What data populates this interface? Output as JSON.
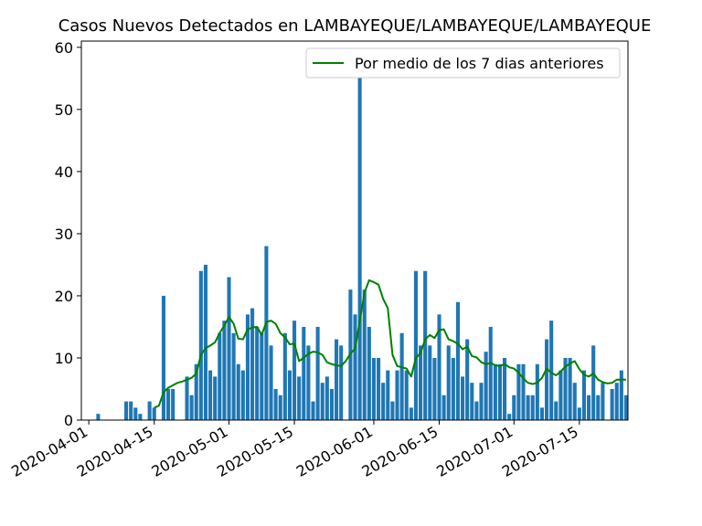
{
  "chart_data": {
    "type": "bar",
    "title": "Casos Nuevos Detectados en LAMBAYEQUE/LAMBAYEQUE/LAMBAYEQUE",
    "xlabel": "",
    "ylabel": "",
    "x_start": "2020-03-31",
    "x_end": "2020-07-25",
    "ylim": [
      0,
      61
    ],
    "yticks": [
      0,
      10,
      20,
      30,
      40,
      50,
      60
    ],
    "xtick_labels": [
      "2020-04-01",
      "2020-04-15",
      "2020-05-01",
      "2020-05-15",
      "2020-06-01",
      "2020-06-15",
      "2020-07-01",
      "2020-07-15"
    ],
    "legend_position": "top-right",
    "grid": false,
    "series": [
      {
        "kind": "bar",
        "color": "#1f77b4",
        "points": [
          [
            "2020-04-03",
            1
          ],
          [
            "2020-04-09",
            3
          ],
          [
            "2020-04-10",
            3
          ],
          [
            "2020-04-11",
            2
          ],
          [
            "2020-04-12",
            1
          ],
          [
            "2020-04-14",
            3
          ],
          [
            "2020-04-15",
            2
          ],
          [
            "2020-04-17",
            20
          ],
          [
            "2020-04-18",
            5
          ],
          [
            "2020-04-19",
            5
          ],
          [
            "2020-04-22",
            7
          ],
          [
            "2020-04-23",
            4
          ],
          [
            "2020-04-24",
            9
          ],
          [
            "2020-04-25",
            24
          ],
          [
            "2020-04-26",
            25
          ],
          [
            "2020-04-27",
            8
          ],
          [
            "2020-04-28",
            7
          ],
          [
            "2020-04-29",
            14
          ],
          [
            "2020-04-30",
            16
          ],
          [
            "2020-05-01",
            23
          ],
          [
            "2020-05-02",
            14
          ],
          [
            "2020-05-03",
            9
          ],
          [
            "2020-05-04",
            8
          ],
          [
            "2020-05-05",
            17
          ],
          [
            "2020-05-06",
            18
          ],
          [
            "2020-05-07",
            15
          ],
          [
            "2020-05-08",
            14
          ],
          [
            "2020-05-09",
            28
          ],
          [
            "2020-05-10",
            12
          ],
          [
            "2020-05-11",
            5
          ],
          [
            "2020-05-12",
            4
          ],
          [
            "2020-05-13",
            14
          ],
          [
            "2020-05-14",
            8
          ],
          [
            "2020-05-15",
            16
          ],
          [
            "2020-05-16",
            7
          ],
          [
            "2020-05-17",
            15
          ],
          [
            "2020-05-18",
            12
          ],
          [
            "2020-05-19",
            3
          ],
          [
            "2020-05-20",
            15
          ],
          [
            "2020-05-21",
            6
          ],
          [
            "2020-05-22",
            7
          ],
          [
            "2020-05-23",
            5
          ],
          [
            "2020-05-24",
            13
          ],
          [
            "2020-05-25",
            12
          ],
          [
            "2020-05-27",
            21
          ],
          [
            "2020-05-28",
            17
          ],
          [
            "2020-05-29",
            58
          ],
          [
            "2020-05-30",
            21
          ],
          [
            "2020-05-31",
            15
          ],
          [
            "2020-06-01",
            10
          ],
          [
            "2020-06-02",
            10
          ],
          [
            "2020-06-03",
            6
          ],
          [
            "2020-06-04",
            8
          ],
          [
            "2020-06-05",
            3
          ],
          [
            "2020-06-06",
            8
          ],
          [
            "2020-06-07",
            14
          ],
          [
            "2020-06-08",
            8
          ],
          [
            "2020-06-09",
            2
          ],
          [
            "2020-06-10",
            24
          ],
          [
            "2020-06-11",
            12
          ],
          [
            "2020-06-12",
            24
          ],
          [
            "2020-06-13",
            12
          ],
          [
            "2020-06-14",
            10
          ],
          [
            "2020-06-15",
            17
          ],
          [
            "2020-06-16",
            4
          ],
          [
            "2020-06-17",
            12
          ],
          [
            "2020-06-18",
            10
          ],
          [
            "2020-06-19",
            19
          ],
          [
            "2020-06-20",
            7
          ],
          [
            "2020-06-21",
            13
          ],
          [
            "2020-06-22",
            6
          ],
          [
            "2020-06-23",
            3
          ],
          [
            "2020-06-24",
            6
          ],
          [
            "2020-06-25",
            11
          ],
          [
            "2020-06-26",
            15
          ],
          [
            "2020-06-27",
            9
          ],
          [
            "2020-06-28",
            9
          ],
          [
            "2020-06-29",
            10
          ],
          [
            "2020-06-30",
            1
          ],
          [
            "2020-07-01",
            4
          ],
          [
            "2020-07-02",
            9
          ],
          [
            "2020-07-03",
            9
          ],
          [
            "2020-07-04",
            4
          ],
          [
            "2020-07-05",
            4
          ],
          [
            "2020-07-06",
            9
          ],
          [
            "2020-07-07",
            2
          ],
          [
            "2020-07-08",
            13
          ],
          [
            "2020-07-09",
            16
          ],
          [
            "2020-07-10",
            3
          ],
          [
            "2020-07-11",
            8
          ],
          [
            "2020-07-12",
            10
          ],
          [
            "2020-07-13",
            10
          ],
          [
            "2020-07-14",
            6
          ],
          [
            "2020-07-15",
            2
          ],
          [
            "2020-07-16",
            8
          ],
          [
            "2020-07-17",
            4
          ],
          [
            "2020-07-18",
            12
          ],
          [
            "2020-07-19",
            4
          ],
          [
            "2020-07-20",
            6
          ],
          [
            "2020-07-22",
            5
          ],
          [
            "2020-07-23",
            6
          ],
          [
            "2020-07-24",
            8
          ],
          [
            "2020-07-25",
            4
          ]
        ]
      },
      {
        "kind": "line",
        "name": "Por medio de los 7 dias anteriores",
        "color": "#008000",
        "points": [
          [
            "2020-04-15",
            2.0
          ],
          [
            "2020-04-16",
            2.3
          ],
          [
            "2020-04-17",
            4.5
          ],
          [
            "2020-04-18",
            5.2
          ],
          [
            "2020-04-19",
            5.6
          ],
          [
            "2020-04-20",
            6.0
          ],
          [
            "2020-04-21",
            6.2
          ],
          [
            "2020-04-22",
            6.5
          ],
          [
            "2020-04-23",
            6.8
          ],
          [
            "2020-04-24",
            7.5
          ],
          [
            "2020-04-25",
            10.5
          ],
          [
            "2020-04-26",
            11.6
          ],
          [
            "2020-04-27",
            12.0
          ],
          [
            "2020-04-28",
            12.5
          ],
          [
            "2020-04-29",
            14.0
          ],
          [
            "2020-04-30",
            15.2
          ],
          [
            "2020-05-01",
            16.6
          ],
          [
            "2020-05-02",
            15.5
          ],
          [
            "2020-05-03",
            13.1
          ],
          [
            "2020-05-04",
            13.0
          ],
          [
            "2020-05-05",
            14.6
          ],
          [
            "2020-05-06",
            14.9
          ],
          [
            "2020-05-07",
            15.0
          ],
          [
            "2020-05-08",
            13.7
          ],
          [
            "2020-05-09",
            15.8
          ],
          [
            "2020-05-10",
            16.0
          ],
          [
            "2020-05-11",
            15.5
          ],
          [
            "2020-05-12",
            14.0
          ],
          [
            "2020-05-13",
            13.3
          ],
          [
            "2020-05-14",
            12.2
          ],
          [
            "2020-05-15",
            12.3
          ],
          [
            "2020-05-16",
            9.5
          ],
          [
            "2020-05-17",
            10.0
          ],
          [
            "2020-05-18",
            10.7
          ],
          [
            "2020-05-19",
            11.0
          ],
          [
            "2020-05-20",
            10.9
          ],
          [
            "2020-05-21",
            10.5
          ],
          [
            "2020-05-22",
            9.3
          ],
          [
            "2020-05-23",
            9.0
          ],
          [
            "2020-05-24",
            8.8
          ],
          [
            "2020-05-25",
            8.7
          ],
          [
            "2020-05-26",
            9.5
          ],
          [
            "2020-05-27",
            10.7
          ],
          [
            "2020-05-28",
            11.5
          ],
          [
            "2020-05-29",
            16.0
          ],
          [
            "2020-05-30",
            20.5
          ],
          [
            "2020-05-31",
            22.5
          ],
          [
            "2020-06-01",
            22.2
          ],
          [
            "2020-06-02",
            21.8
          ],
          [
            "2020-06-03",
            19.5
          ],
          [
            "2020-06-04",
            18.0
          ],
          [
            "2020-06-05",
            10.5
          ],
          [
            "2020-06-06",
            8.7
          ],
          [
            "2020-06-07",
            8.5
          ],
          [
            "2020-06-08",
            8.3
          ],
          [
            "2020-06-09",
            7.0
          ],
          [
            "2020-06-10",
            10.0
          ],
          [
            "2020-06-11",
            10.8
          ],
          [
            "2020-06-12",
            13.0
          ],
          [
            "2020-06-13",
            13.7
          ],
          [
            "2020-06-14",
            13.2
          ],
          [
            "2020-06-15",
            14.5
          ],
          [
            "2020-06-16",
            14.6
          ],
          [
            "2020-06-17",
            13.0
          ],
          [
            "2020-06-18",
            12.7
          ],
          [
            "2020-06-19",
            12.3
          ],
          [
            "2020-06-20",
            11.4
          ],
          [
            "2020-06-21",
            11.8
          ],
          [
            "2020-06-22",
            10.3
          ],
          [
            "2020-06-23",
            10.1
          ],
          [
            "2020-06-24",
            9.3
          ],
          [
            "2020-06-25",
            9.0
          ],
          [
            "2020-06-26",
            9.2
          ],
          [
            "2020-06-27",
            8.8
          ],
          [
            "2020-06-28",
            8.7
          ],
          [
            "2020-06-29",
            9.0
          ],
          [
            "2020-06-30",
            8.5
          ],
          [
            "2020-07-01",
            8.3
          ],
          [
            "2020-07-02",
            7.6
          ],
          [
            "2020-07-03",
            6.7
          ],
          [
            "2020-07-04",
            6.0
          ],
          [
            "2020-07-05",
            5.8
          ],
          [
            "2020-07-06",
            6.0
          ],
          [
            "2020-07-07",
            6.8
          ],
          [
            "2020-07-08",
            8.3
          ],
          [
            "2020-07-09",
            7.6
          ],
          [
            "2020-07-10",
            7.2
          ],
          [
            "2020-07-11",
            7.8
          ],
          [
            "2020-07-12",
            8.6
          ],
          [
            "2020-07-13",
            9.1
          ],
          [
            "2020-07-14",
            9.5
          ],
          [
            "2020-07-15",
            8.2
          ],
          [
            "2020-07-16",
            7.3
          ],
          [
            "2020-07-17",
            7.0
          ],
          [
            "2020-07-18",
            7.5
          ],
          [
            "2020-07-19",
            6.5
          ],
          [
            "2020-07-20",
            6.1
          ],
          [
            "2020-07-21",
            5.9
          ],
          [
            "2020-07-22",
            6.0
          ],
          [
            "2020-07-23",
            6.5
          ],
          [
            "2020-07-24",
            6.5
          ],
          [
            "2020-07-25",
            6.5
          ]
        ]
      }
    ]
  }
}
